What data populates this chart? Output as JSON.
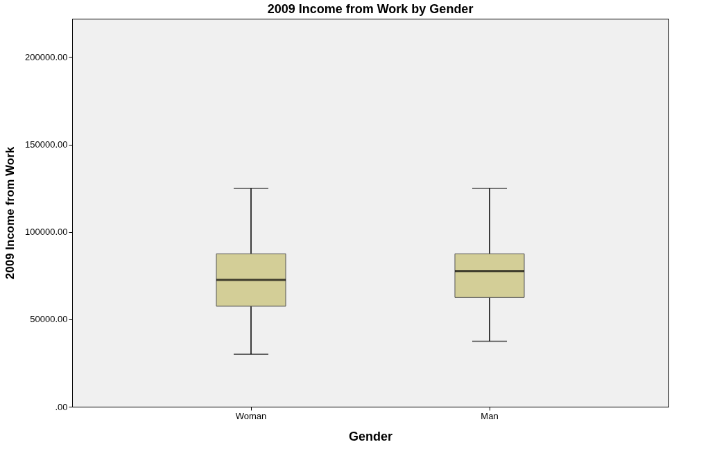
{
  "chart_data": {
    "type": "box",
    "title": "2009 Income from Work by Gender",
    "xlabel": "Gender",
    "ylabel": "2009 Income from Work",
    "categories": [
      "Woman",
      "Man"
    ],
    "color": "#d3ce97",
    "boxes": [
      {
        "low": 30000,
        "q1": 57500,
        "median": 72500,
        "q3": 87500,
        "high": 125000
      },
      {
        "low": 37500,
        "q1": 62500,
        "median": 77500,
        "q3": 87500,
        "high": 125000
      }
    ],
    "ylim": [
      0,
      222000
    ],
    "yticks": [
      {
        "value": 0,
        "label": ".00"
      },
      {
        "value": 50000,
        "label": "50000.00"
      },
      {
        "value": 100000,
        "label": "100000.00"
      },
      {
        "value": 150000,
        "label": "150000.00"
      },
      {
        "value": 200000,
        "label": "200000.00"
      }
    ],
    "grid": false
  }
}
